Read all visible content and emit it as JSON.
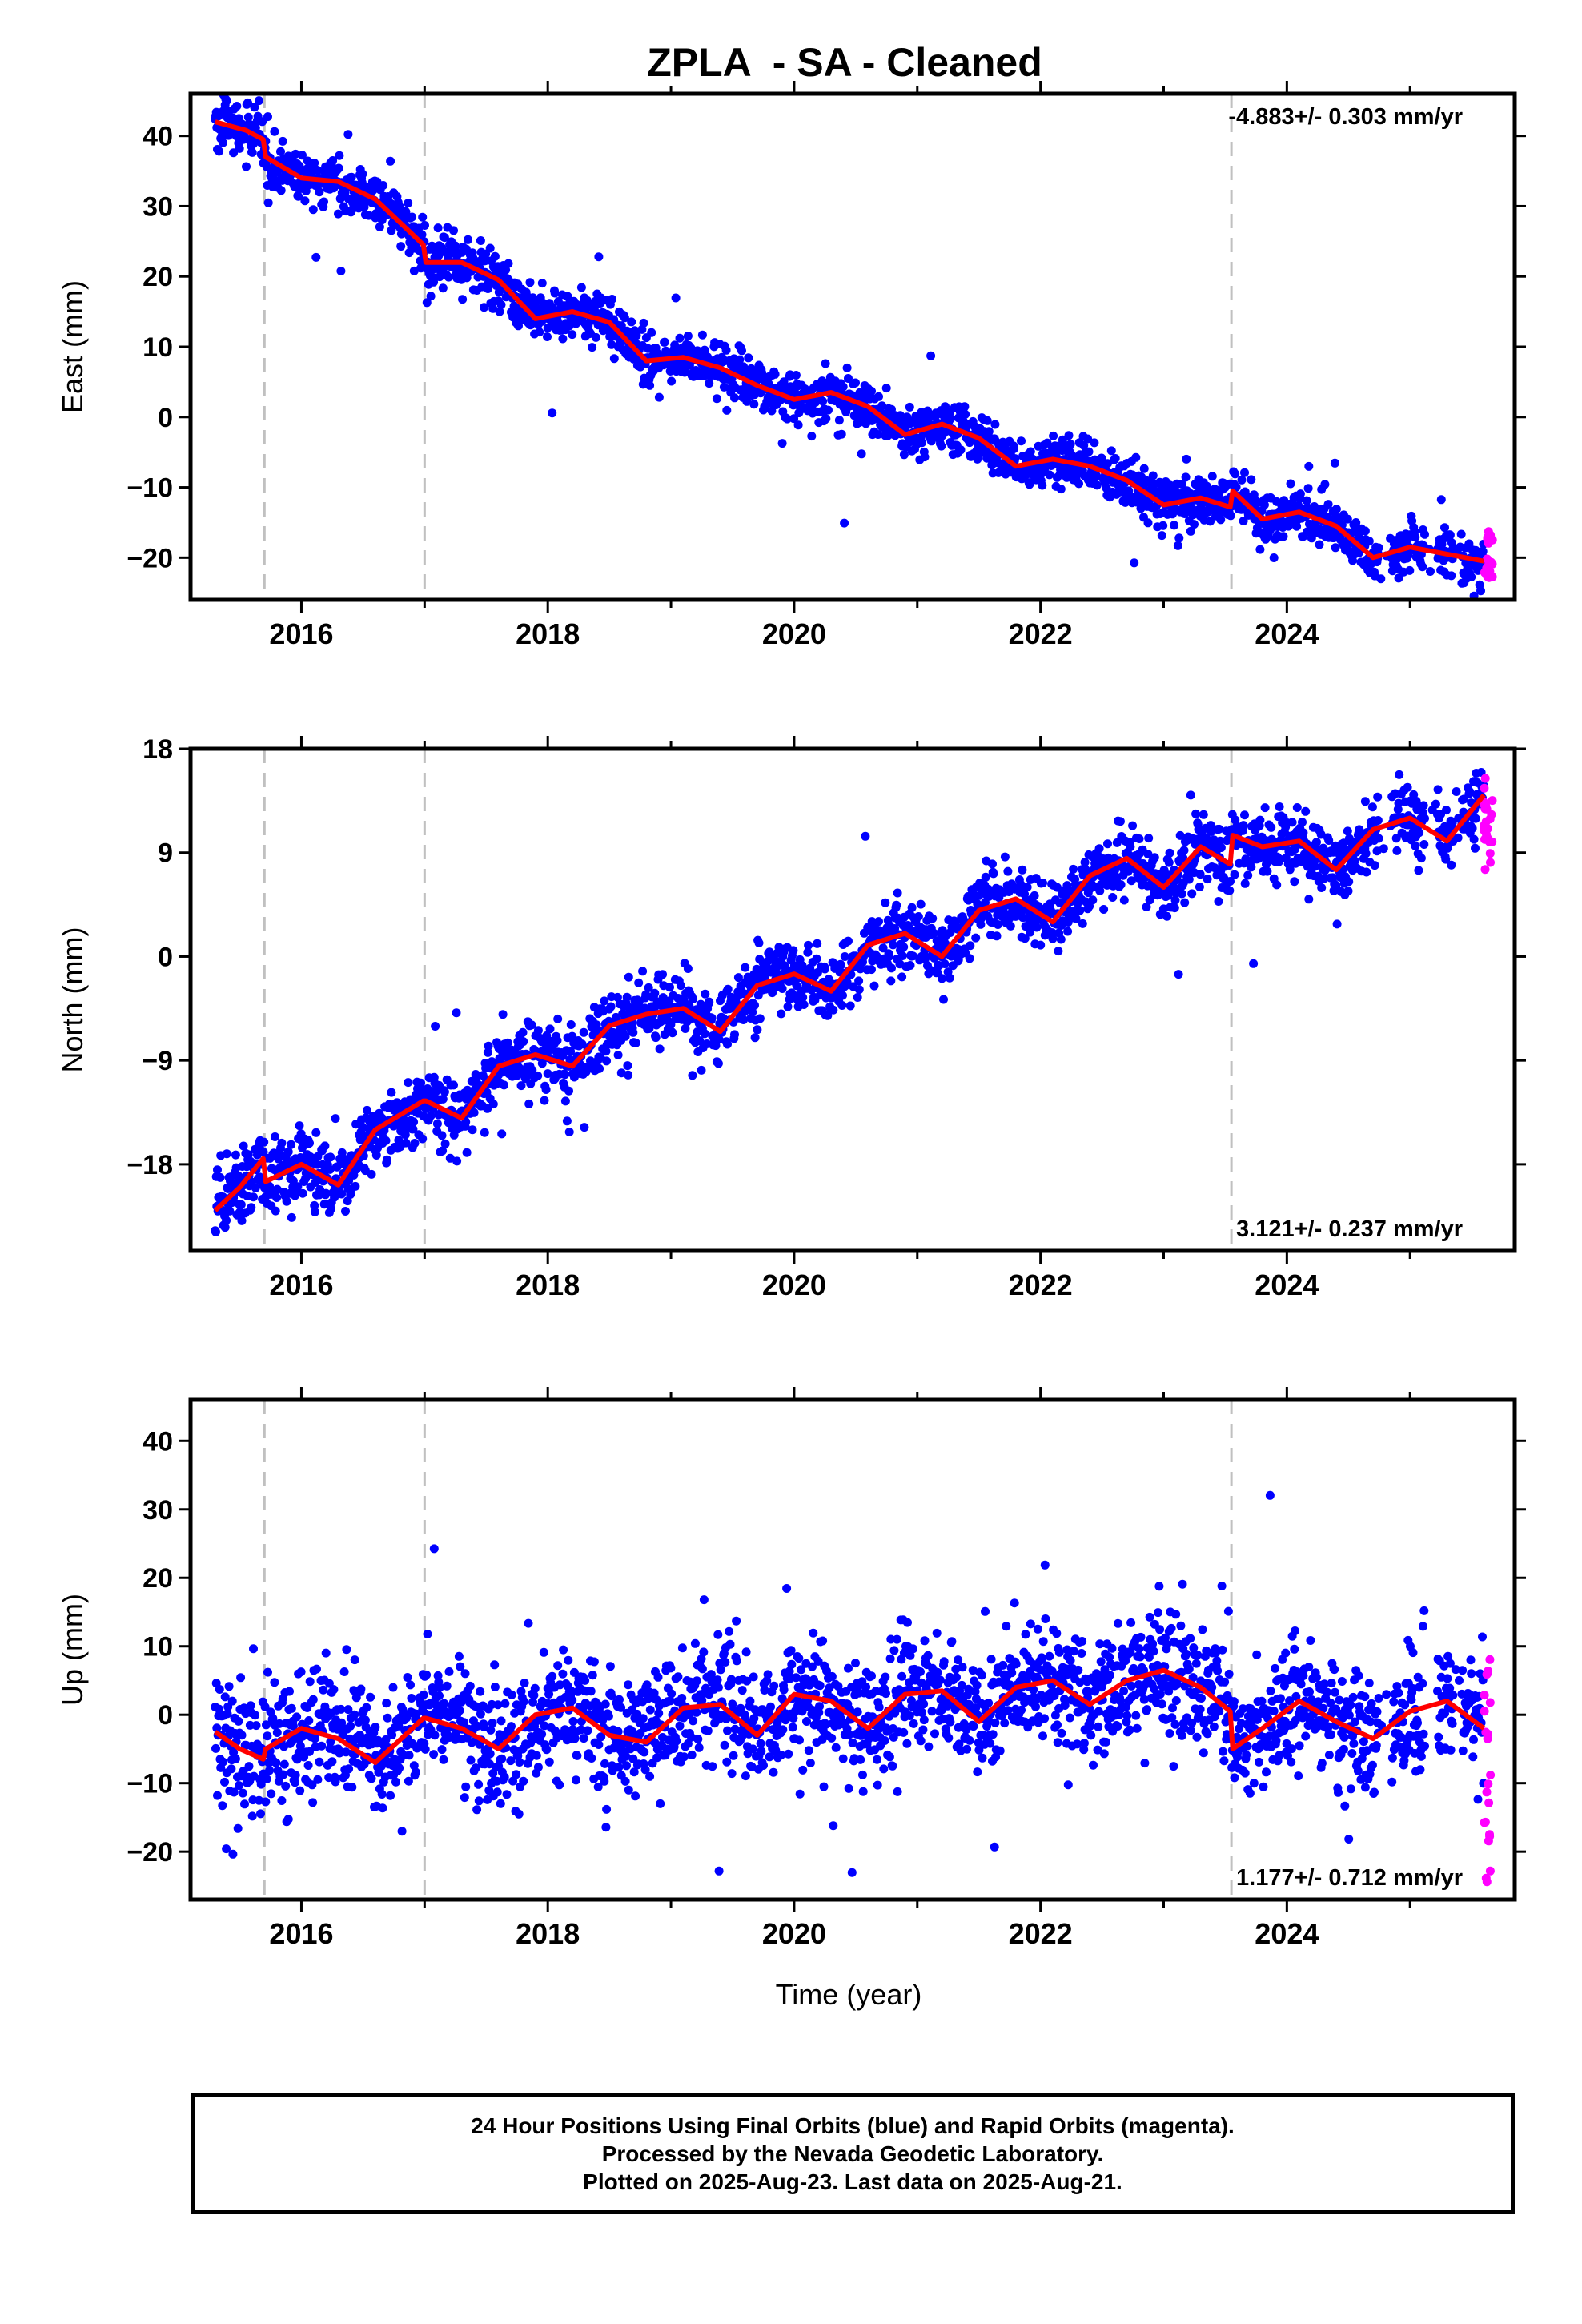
{
  "title": "ZPLA  - SA - Cleaned",
  "xlabel": "Time (year)",
  "caption": {
    "line1": "24 Hour Positions Using Final Orbits (blue) and Rapid Orbits (magenta).",
    "line2": "Processed by the Nevada Geodetic Laboratory.",
    "line3": "Plotted on 2025-Aug-23. Last data on 2025-Aug-21."
  },
  "colors": {
    "final": "#0000ff",
    "rapid": "#ff00ff",
    "model": "#ff0000",
    "breaks": "#c0c0c0"
  },
  "chart_data": [
    {
      "type": "scatter",
      "component": "East",
      "ylabel": "East (mm)",
      "xlim": [
        2015.1,
        2025.85
      ],
      "ylim": [
        -26,
        46
      ],
      "yticks": [
        -20,
        -10,
        0,
        10,
        20,
        30,
        40
      ],
      "xticks": [
        2016,
        2018,
        2020,
        2022,
        2024
      ],
      "velocity_label": "-4.883+/- 0.303 mm/yr",
      "label_position": "top-right",
      "breaks": [
        2015.7,
        2017.0,
        2023.55
      ],
      "model": {
        "x": [
          2015.3,
          2015.55,
          2015.69,
          2015.71,
          2016.0,
          2016.3,
          2016.6,
          2016.99,
          2017.01,
          2017.3,
          2017.6,
          2017.9,
          2018.2,
          2018.5,
          2018.8,
          2019.1,
          2019.4,
          2019.7,
          2020.0,
          2020.3,
          2020.6,
          2020.9,
          2021.2,
          2021.5,
          2021.8,
          2022.1,
          2022.4,
          2022.7,
          2023.0,
          2023.3,
          2023.54,
          2023.56,
          2023.8,
          2024.1,
          2024.4,
          2024.7,
          2025.0,
          2025.3,
          2025.6
        ],
        "y": [
          42,
          40.8,
          39.5,
          37,
          34,
          33.5,
          31,
          24.5,
          22,
          22,
          19.5,
          14,
          15,
          13.5,
          8,
          8.5,
          7,
          4.5,
          2.5,
          3.5,
          1.5,
          -2.5,
          -1,
          -3,
          -7,
          -6,
          -7,
          -9,
          -12.5,
          -11.5,
          -12.8,
          -10.5,
          -14.5,
          -13.5,
          -15.5,
          -20,
          -18.5,
          -19.5,
          -20.5
        ]
      },
      "scatter": {
        "spread": 1.8
      },
      "rapid": {
        "x_start": 2025.6,
        "x_end": 2025.67,
        "y_min": -23,
        "y_max": -15.5
      }
    },
    {
      "type": "scatter",
      "component": "North",
      "ylabel": "North (mm)",
      "xlim": [
        2015.1,
        2025.85
      ],
      "ylim": [
        -25.5,
        18
      ],
      "yticks": [
        -18,
        -9,
        0,
        9,
        18
      ],
      "xticks": [
        2016,
        2018,
        2020,
        2022,
        2024
      ],
      "velocity_label": "3.121+/- 0.237 mm/yr",
      "label_position": "bottom-right",
      "breaks": [
        2015.7,
        2017.0,
        2023.55
      ],
      "model": {
        "x": [
          2015.3,
          2015.5,
          2015.69,
          2015.71,
          2016.0,
          2016.3,
          2016.6,
          2016.99,
          2017.01,
          2017.3,
          2017.6,
          2017.9,
          2018.2,
          2018.5,
          2018.8,
          2019.1,
          2019.4,
          2019.7,
          2020.0,
          2020.3,
          2020.6,
          2020.9,
          2021.2,
          2021.5,
          2021.8,
          2022.1,
          2022.4,
          2022.7,
          2023.0,
          2023.3,
          2023.54,
          2023.56,
          2023.8,
          2024.1,
          2024.4,
          2024.7,
          2025.0,
          2025.3,
          2025.6
        ],
        "y": [
          -22,
          -20,
          -17.5,
          -19.5,
          -18,
          -19.8,
          -15,
          -12.5,
          -12.5,
          -14,
          -9.5,
          -8.5,
          -9.5,
          -6,
          -5,
          -4.5,
          -6.5,
          -2.5,
          -1.5,
          -3,
          1,
          2,
          0,
          4,
          5,
          3,
          7,
          8.5,
          6,
          9.5,
          8,
          10.5,
          9.5,
          10,
          7.5,
          11,
          12,
          10,
          14
        ]
      },
      "scatter": {
        "spread": 1.5
      },
      "rapid": {
        "x_start": 2025.6,
        "x_end": 2025.67,
        "y_min": 7.5,
        "y_max": 15.5
      }
    },
    {
      "type": "scatter",
      "component": "Up",
      "ylabel": "Up (mm)",
      "xlim": [
        2015.1,
        2025.85
      ],
      "ylim": [
        -27,
        46
      ],
      "yticks": [
        -20,
        -10,
        0,
        10,
        20,
        30,
        40
      ],
      "xticks": [
        2016,
        2018,
        2020,
        2022,
        2024
      ],
      "velocity_label": "1.177+/- 0.712 mm/yr",
      "label_position": "bottom-right",
      "breaks": [
        2015.7,
        2017.0,
        2023.55
      ],
      "model": {
        "x": [
          2015.3,
          2015.5,
          2015.69,
          2015.71,
          2016.0,
          2016.3,
          2016.6,
          2016.99,
          2017.01,
          2017.3,
          2017.6,
          2017.9,
          2018.2,
          2018.5,
          2018.8,
          2019.1,
          2019.4,
          2019.7,
          2020.0,
          2020.3,
          2020.6,
          2020.9,
          2021.2,
          2021.5,
          2021.8,
          2022.1,
          2022.4,
          2022.7,
          2023.0,
          2023.3,
          2023.54,
          2023.56,
          2023.8,
          2024.1,
          2024.4,
          2024.7,
          2025.0,
          2025.3,
          2025.6
        ],
        "y": [
          -2.5,
          -5,
          -6.5,
          -5,
          -2,
          -3.5,
          -7,
          -0.5,
          -0.5,
          -2,
          -5,
          0,
          1,
          -3,
          -4,
          1,
          1.5,
          -3,
          3,
          2,
          -2,
          3,
          3.5,
          -1,
          4,
          5,
          1.5,
          5,
          6.5,
          4,
          0.5,
          -5,
          -2,
          2,
          -1,
          -3.5,
          0.5,
          2,
          -2
        ]
      },
      "scatter": {
        "spread": 4.5
      },
      "rapid": {
        "x_start": 2025.6,
        "x_end": 2025.67,
        "y_min": -25,
        "y_max": 10
      }
    }
  ]
}
